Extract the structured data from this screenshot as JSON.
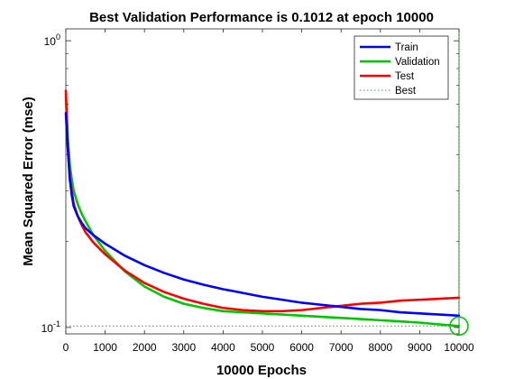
{
  "chart_data": {
    "type": "line",
    "title": "Best Validation Performance is 0.1012 at epoch 10000",
    "xlabel": "10000 Epochs",
    "ylabel": "Mean Squared Error  (mse)",
    "xlim": [
      0,
      10000
    ],
    "ylim": [
      0.095,
      1.1
    ],
    "yscale": "log",
    "x_ticks": [
      0,
      1000,
      2000,
      3000,
      4000,
      5000,
      6000,
      7000,
      8000,
      9000,
      10000
    ],
    "y_ticks": [
      {
        "value": 0.1,
        "base": "10",
        "exp": "-1"
      },
      {
        "value": 1.0,
        "base": "10",
        "exp": "0"
      }
    ],
    "grid": false,
    "legend_position": "top-right",
    "series": [
      {
        "name": "Train",
        "color": "#0000ff",
        "x": [
          0,
          50,
          100,
          150,
          200,
          300,
          400,
          500,
          700,
          1000,
          1500,
          2000,
          2500,
          3000,
          3500,
          4000,
          4500,
          5000,
          5500,
          6000,
          6500,
          7000,
          7500,
          8000,
          8500,
          9000,
          9500,
          10000
        ],
        "y": [
          0.56,
          0.42,
          0.33,
          0.29,
          0.265,
          0.245,
          0.232,
          0.222,
          0.21,
          0.196,
          0.178,
          0.165,
          0.155,
          0.147,
          0.141,
          0.136,
          0.132,
          0.128,
          0.125,
          0.122,
          0.12,
          0.118,
          0.116,
          0.115,
          0.113,
          0.112,
          0.111,
          0.11
        ]
      },
      {
        "name": "Validation",
        "color": "#00c800",
        "x": [
          0,
          50,
          100,
          150,
          200,
          300,
          400,
          500,
          700,
          1000,
          1500,
          2000,
          2500,
          3000,
          3500,
          4000,
          4500,
          5000,
          5500,
          6000,
          6500,
          7000,
          7500,
          8000,
          8500,
          9000,
          9500,
          10000
        ],
        "y": [
          0.64,
          0.46,
          0.37,
          0.33,
          0.3,
          0.27,
          0.25,
          0.235,
          0.21,
          0.185,
          0.157,
          0.139,
          0.128,
          0.121,
          0.117,
          0.114,
          0.113,
          0.112,
          0.111,
          0.11,
          0.109,
          0.108,
          0.107,
          0.106,
          0.105,
          0.104,
          0.1025,
          0.1012
        ]
      },
      {
        "name": "Test",
        "color": "#ff0000",
        "x": [
          0,
          50,
          100,
          150,
          200,
          300,
          400,
          500,
          700,
          1000,
          1500,
          2000,
          2500,
          3000,
          3500,
          4000,
          4500,
          5000,
          5500,
          6000,
          6500,
          7000,
          7500,
          8000,
          8500,
          9000,
          9500,
          10000
        ],
        "y": [
          0.67,
          0.43,
          0.34,
          0.3,
          0.27,
          0.245,
          0.228,
          0.215,
          0.198,
          0.18,
          0.158,
          0.143,
          0.133,
          0.126,
          0.121,
          0.117,
          0.115,
          0.114,
          0.114,
          0.115,
          0.117,
          0.119,
          0.121,
          0.122,
          0.124,
          0.125,
          0.126,
          0.127
        ]
      }
    ],
    "best": {
      "name": "Best",
      "color": "#00c800",
      "epoch": 10000,
      "value": 0.1012
    }
  }
}
